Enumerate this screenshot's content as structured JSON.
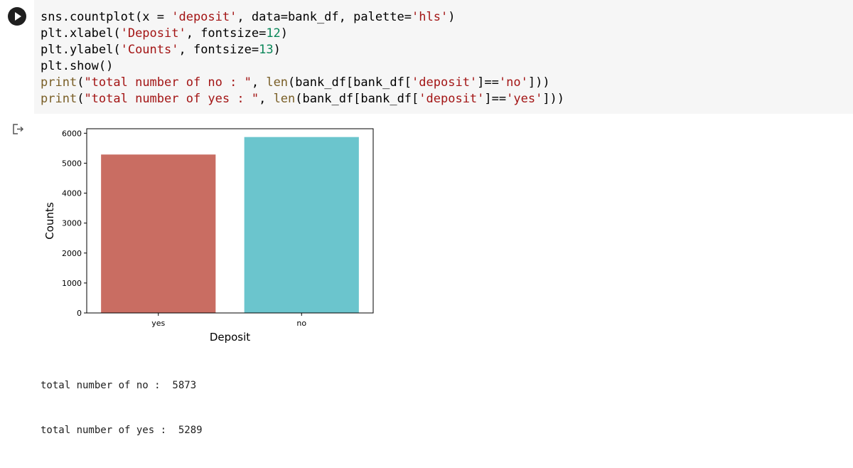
{
  "code_cell": {
    "lines": [
      [
        {
          "t": "sns.countplot(x = ",
          "c": ""
        },
        {
          "t": "'deposit'",
          "c": "str"
        },
        {
          "t": ", data=bank_df, palette=",
          "c": ""
        },
        {
          "t": "'hls'",
          "c": "str"
        },
        {
          "t": ")",
          "c": ""
        }
      ],
      [
        {
          "t": "plt.xlabel(",
          "c": ""
        },
        {
          "t": "'Deposit'",
          "c": "str"
        },
        {
          "t": ", fontsize=",
          "c": ""
        },
        {
          "t": "12",
          "c": "num"
        },
        {
          "t": ")",
          "c": ""
        }
      ],
      [
        {
          "t": "plt.ylabel(",
          "c": ""
        },
        {
          "t": "'Counts'",
          "c": "str"
        },
        {
          "t": ", fontsize=",
          "c": ""
        },
        {
          "t": "13",
          "c": "num"
        },
        {
          "t": ")",
          "c": ""
        }
      ],
      [
        {
          "t": "plt.show()",
          "c": ""
        }
      ],
      [
        {
          "t": "print",
          "c": "kw"
        },
        {
          "t": "(",
          "c": ""
        },
        {
          "t": "\"total number of no : \"",
          "c": "str"
        },
        {
          "t": ", ",
          "c": ""
        },
        {
          "t": "len",
          "c": "kw"
        },
        {
          "t": "(bank_df[bank_df[",
          "c": ""
        },
        {
          "t": "'deposit'",
          "c": "str"
        },
        {
          "t": "]==",
          "c": ""
        },
        {
          "t": "'no'",
          "c": "str"
        },
        {
          "t": "]))",
          "c": ""
        }
      ],
      [
        {
          "t": "print",
          "c": "kw"
        },
        {
          "t": "(",
          "c": ""
        },
        {
          "t": "\"total number of yes : \"",
          "c": "str"
        },
        {
          "t": ", ",
          "c": ""
        },
        {
          "t": "len",
          "c": "kw"
        },
        {
          "t": "(bank_df[bank_df[",
          "c": ""
        },
        {
          "t": "'deposit'",
          "c": "str"
        },
        {
          "t": "]==",
          "c": ""
        },
        {
          "t": "'yes'",
          "c": "str"
        },
        {
          "t": "]))",
          "c": ""
        }
      ]
    ]
  },
  "icons": {
    "run": "play-circle-icon",
    "output": "output-redirect-icon"
  },
  "chart_data": {
    "type": "bar",
    "categories": [
      "yes",
      "no"
    ],
    "values": [
      5289,
      5873
    ],
    "colors": [
      "#c96d62",
      "#6bc5cd"
    ],
    "xlabel": "Deposit",
    "ylabel": "Counts",
    "ylim": [
      0,
      6150
    ],
    "yticks": [
      0,
      1000,
      2000,
      3000,
      4000,
      5000,
      6000
    ],
    "grid": false
  },
  "output_text": {
    "line1": "total number of no :  5873",
    "line2": "total number of yes :  5289"
  }
}
